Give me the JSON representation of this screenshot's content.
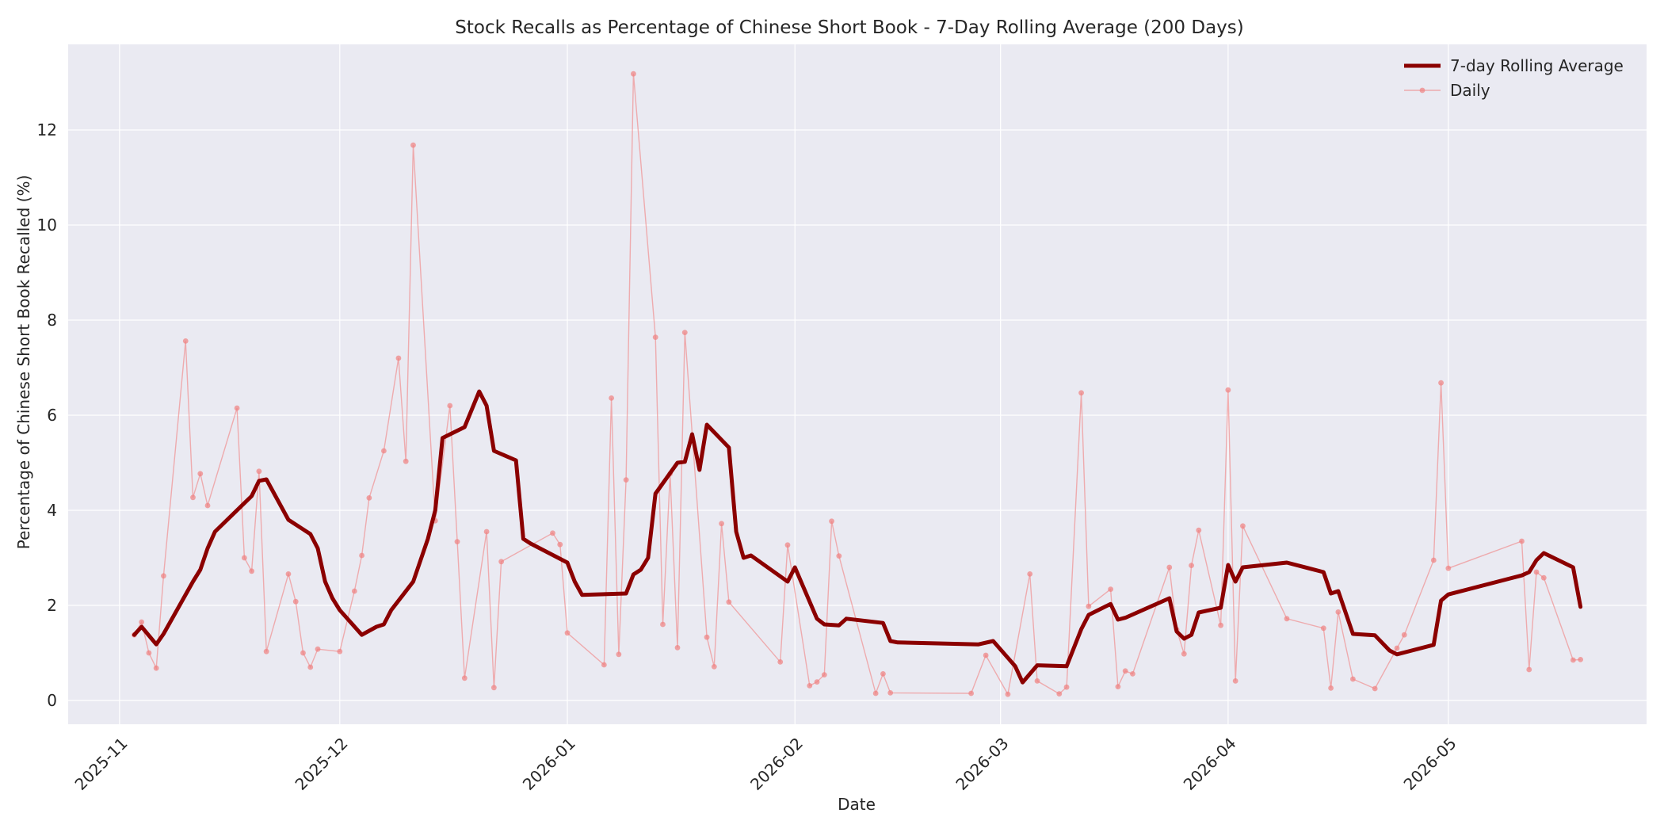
{
  "chart_data": {
    "type": "line",
    "title": "Stock Recalls as Percentage of Chinese Short Book - 7-Day Rolling Average (200 Days)",
    "xlabel": "Date",
    "ylabel": "Percentage of Chinese Short Book Recalled (%)",
    "x_ticks": [
      "2025-11",
      "2025-12",
      "2026-01",
      "2026-02",
      "2026-03",
      "2026-04",
      "2026-05"
    ],
    "y_ticks": [
      "0",
      "2",
      "4",
      "6",
      "8",
      "10",
      "12"
    ],
    "xlim": [
      "2025-10-25",
      "2026-05-28"
    ],
    "ylim": [
      -0.5,
      13.8
    ],
    "grid": true,
    "legend_position": "top-right",
    "colors": {
      "background": "#eaeaf2",
      "grid": "#ffffff",
      "rolling": "#8b0000",
      "daily": "#f08080"
    },
    "series": [
      {
        "name": "7-day Rolling Average",
        "style": "thick-line",
        "points": [
          [
            "2025-11-03",
            1.38
          ],
          [
            "2025-11-04",
            1.55
          ],
          [
            "2025-11-06",
            1.18
          ],
          [
            "2025-11-07",
            1.4
          ],
          [
            "2025-11-11",
            2.5
          ],
          [
            "2025-11-12",
            2.75
          ],
          [
            "2025-11-13",
            3.2
          ],
          [
            "2025-11-14",
            3.55
          ],
          [
            "2025-11-19",
            4.3
          ],
          [
            "2025-11-20",
            4.62
          ],
          [
            "2025-11-21",
            4.65
          ],
          [
            "2025-11-24",
            3.8
          ],
          [
            "2025-11-27",
            3.5
          ],
          [
            "2025-11-28",
            3.2
          ],
          [
            "2025-11-29",
            2.5
          ],
          [
            "2025-11-30",
            2.15
          ],
          [
            "2025-12-01",
            1.9
          ],
          [
            "2025-12-04",
            1.38
          ],
          [
            "2025-12-06",
            1.55
          ],
          [
            "2025-12-07",
            1.6
          ],
          [
            "2025-12-08",
            1.9
          ],
          [
            "2025-12-11",
            2.5
          ],
          [
            "2025-12-13",
            3.4
          ],
          [
            "2025-12-14",
            4.0
          ],
          [
            "2025-12-15",
            5.52
          ],
          [
            "2025-12-18",
            5.75
          ],
          [
            "2025-12-20",
            6.5
          ],
          [
            "2025-12-21",
            6.2
          ],
          [
            "2025-12-22",
            5.25
          ],
          [
            "2025-12-25",
            5.05
          ],
          [
            "2025-12-26",
            3.4
          ],
          [
            "2025-12-27",
            3.3
          ],
          [
            "2026-01-01",
            2.9
          ],
          [
            "2026-01-02",
            2.5
          ],
          [
            "2026-01-03",
            2.22
          ],
          [
            "2026-01-09",
            2.25
          ],
          [
            "2026-01-10",
            2.65
          ],
          [
            "2026-01-11",
            2.75
          ],
          [
            "2026-01-12",
            3.0
          ],
          [
            "2026-01-13",
            4.35
          ],
          [
            "2026-01-16",
            5.0
          ],
          [
            "2026-01-17",
            5.02
          ],
          [
            "2026-01-18",
            5.6
          ],
          [
            "2026-01-19",
            4.85
          ],
          [
            "2026-01-20",
            5.8
          ],
          [
            "2026-01-23",
            5.32
          ],
          [
            "2026-01-24",
            3.55
          ],
          [
            "2026-01-25",
            3.0
          ],
          [
            "2026-01-26",
            3.05
          ],
          [
            "2026-01-31",
            2.5
          ],
          [
            "2026-02-01",
            2.8
          ],
          [
            "2026-02-04",
            1.72
          ],
          [
            "2026-02-05",
            1.6
          ],
          [
            "2026-02-07",
            1.58
          ],
          [
            "2026-02-08",
            1.72
          ],
          [
            "2026-02-13",
            1.63
          ],
          [
            "2026-02-14",
            1.25
          ],
          [
            "2026-02-15",
            1.22
          ],
          [
            "2026-02-26",
            1.18
          ],
          [
            "2026-02-28",
            1.25
          ],
          [
            "2026-03-03",
            0.72
          ],
          [
            "2026-03-04",
            0.38
          ],
          [
            "2026-03-06",
            0.74
          ],
          [
            "2026-03-10",
            0.72
          ],
          [
            "2026-03-12",
            1.5
          ],
          [
            "2026-03-13",
            1.8
          ],
          [
            "2026-03-16",
            2.03
          ],
          [
            "2026-03-17",
            1.7
          ],
          [
            "2026-03-18",
            1.74
          ],
          [
            "2026-03-24",
            2.15
          ],
          [
            "2026-03-25",
            1.45
          ],
          [
            "2026-03-26",
            1.3
          ],
          [
            "2026-03-27",
            1.38
          ],
          [
            "2026-03-28",
            1.85
          ],
          [
            "2026-03-31",
            1.95
          ],
          [
            "2026-04-01",
            2.85
          ],
          [
            "2026-04-02",
            2.5
          ],
          [
            "2026-04-03",
            2.8
          ],
          [
            "2026-04-09",
            2.9
          ],
          [
            "2026-04-14",
            2.7
          ],
          [
            "2026-04-15",
            2.25
          ],
          [
            "2026-04-16",
            2.3
          ],
          [
            "2026-04-18",
            1.4
          ],
          [
            "2026-04-21",
            1.37
          ],
          [
            "2026-04-23",
            1.05
          ],
          [
            "2026-04-24",
            0.97
          ],
          [
            "2026-04-29",
            1.17
          ],
          [
            "2026-04-30",
            2.1
          ],
          [
            "2026-05-01",
            2.23
          ],
          [
            "2026-05-11",
            2.63
          ],
          [
            "2026-05-12",
            2.7
          ],
          [
            "2026-05-13",
            2.95
          ],
          [
            "2026-05-14",
            3.1
          ],
          [
            "2026-05-18",
            2.8
          ],
          [
            "2026-05-19",
            1.97
          ]
        ]
      },
      {
        "name": "Daily",
        "style": "thin-line-markers",
        "points": [
          [
            "2025-11-03",
            1.38
          ],
          [
            "2025-11-04",
            1.65
          ],
          [
            "2025-11-05",
            1.0
          ],
          [
            "2025-11-06",
            0.68
          ],
          [
            "2025-11-07",
            2.62
          ],
          [
            "2025-11-10",
            7.56
          ],
          [
            "2025-11-11",
            4.27
          ],
          [
            "2025-11-12",
            4.77
          ],
          [
            "2025-11-13",
            4.1
          ],
          [
            "2025-11-17",
            6.15
          ],
          [
            "2025-11-18",
            3.0
          ],
          [
            "2025-11-19",
            2.72
          ],
          [
            "2025-11-20",
            4.82
          ],
          [
            "2025-11-21",
            1.03
          ],
          [
            "2025-11-24",
            2.66
          ],
          [
            "2025-11-25",
            2.08
          ],
          [
            "2025-11-26",
            1.0
          ],
          [
            "2025-11-27",
            0.7
          ],
          [
            "2025-11-28",
            1.08
          ],
          [
            "2025-12-01",
            1.03
          ],
          [
            "2025-12-03",
            2.3
          ],
          [
            "2025-12-04",
            3.05
          ],
          [
            "2025-12-05",
            4.26
          ],
          [
            "2025-12-07",
            5.25
          ],
          [
            "2025-12-09",
            7.2
          ],
          [
            "2025-12-10",
            5.03
          ],
          [
            "2025-12-11",
            11.68
          ],
          [
            "2025-12-14",
            3.78
          ],
          [
            "2025-12-16",
            6.2
          ],
          [
            "2025-12-17",
            3.34
          ],
          [
            "2025-12-18",
            0.47
          ],
          [
            "2025-12-21",
            3.55
          ],
          [
            "2025-12-22",
            0.27
          ],
          [
            "2025-12-23",
            2.92
          ],
          [
            "2025-12-30",
            3.52
          ],
          [
            "2025-12-31",
            3.28
          ],
          [
            "2026-01-01",
            1.42
          ],
          [
            "2026-01-06",
            0.75
          ],
          [
            "2026-01-07",
            6.36
          ],
          [
            "2026-01-08",
            0.97
          ],
          [
            "2026-01-09",
            4.64
          ],
          [
            "2026-01-10",
            13.18
          ],
          [
            "2026-01-13",
            7.64
          ],
          [
            "2026-01-14",
            1.6
          ],
          [
            "2026-01-15",
            4.77
          ],
          [
            "2026-01-16",
            1.11
          ],
          [
            "2026-01-17",
            7.74
          ],
          [
            "2026-01-20",
            1.33
          ],
          [
            "2026-01-21",
            0.71
          ],
          [
            "2026-01-22",
            3.72
          ],
          [
            "2026-01-23",
            2.07
          ],
          [
            "2026-01-30",
            0.81
          ],
          [
            "2026-01-31",
            3.27
          ],
          [
            "2026-02-03",
            0.31
          ],
          [
            "2026-02-04",
            0.39
          ],
          [
            "2026-02-05",
            0.54
          ],
          [
            "2026-02-06",
            3.77
          ],
          [
            "2026-02-07",
            3.04
          ],
          [
            "2026-02-12",
            0.15
          ],
          [
            "2026-02-13",
            0.56
          ],
          [
            "2026-02-14",
            0.16
          ],
          [
            "2026-02-25",
            0.15
          ],
          [
            "2026-02-27",
            0.95
          ],
          [
            "2026-03-02",
            0.13
          ],
          [
            "2026-03-05",
            2.66
          ],
          [
            "2026-03-06",
            0.41
          ],
          [
            "2026-03-09",
            0.14
          ],
          [
            "2026-03-10",
            0.28
          ],
          [
            "2026-03-12",
            6.47
          ],
          [
            "2026-03-13",
            1.98
          ],
          [
            "2026-03-16",
            2.34
          ],
          [
            "2026-03-17",
            0.29
          ],
          [
            "2026-03-18",
            0.62
          ],
          [
            "2026-03-19",
            0.56
          ],
          [
            "2026-03-24",
            2.8
          ],
          [
            "2026-03-25",
            1.49
          ],
          [
            "2026-03-26",
            0.98
          ],
          [
            "2026-03-27",
            2.84
          ],
          [
            "2026-03-28",
            3.58
          ],
          [
            "2026-03-31",
            1.58
          ],
          [
            "2026-04-01",
            6.53
          ],
          [
            "2026-04-02",
            0.41
          ],
          [
            "2026-04-03",
            3.67
          ],
          [
            "2026-04-09",
            1.72
          ],
          [
            "2026-04-14",
            1.52
          ],
          [
            "2026-04-15",
            0.26
          ],
          [
            "2026-04-16",
            1.86
          ],
          [
            "2026-04-18",
            0.45
          ],
          [
            "2026-04-21",
            0.25
          ],
          [
            "2026-04-24",
            1.1
          ],
          [
            "2026-04-25",
            1.38
          ],
          [
            "2026-04-29",
            2.95
          ],
          [
            "2026-04-30",
            6.68
          ],
          [
            "2026-05-01",
            2.78
          ],
          [
            "2026-05-11",
            3.35
          ],
          [
            "2026-05-12",
            0.65
          ],
          [
            "2026-05-13",
            2.7
          ],
          [
            "2026-05-14",
            2.58
          ],
          [
            "2026-05-18",
            0.85
          ],
          [
            "2026-05-19",
            0.86
          ]
        ]
      }
    ]
  }
}
